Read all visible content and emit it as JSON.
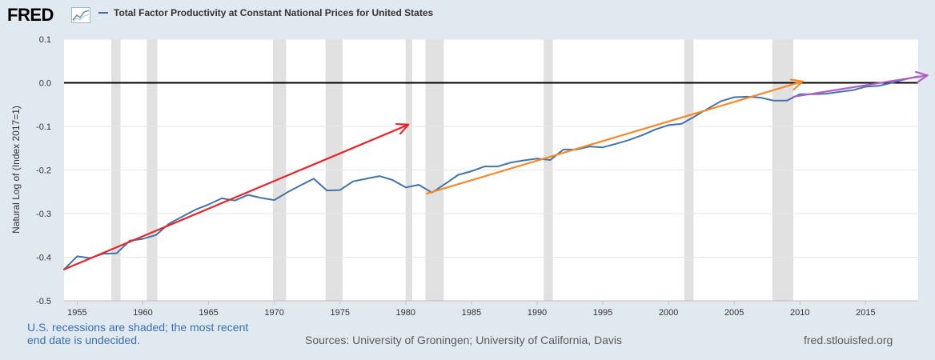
{
  "header": {
    "logo_text": "FRED",
    "logo_icon": "chart-line-icon",
    "legend_label": "Total Factor Productivity at Constant National Prices for United States"
  },
  "footer": {
    "recession_note": "U.S. recessions are shaded; the most recent end date is undecided.",
    "sources": "Sources: University of Groningen; University of California, Davis",
    "site": "fred.stlouisfed.org"
  },
  "colors": {
    "series": "#4572a7",
    "recession": "#e1e1e1",
    "zero_line": "#000000",
    "arrow_red": "#e8232a",
    "arrow_orange": "#f5892a",
    "arrow_purple": "#b05ec8",
    "background": "#e1e9f0"
  },
  "chart_data": {
    "type": "line",
    "title": "",
    "xlabel": "",
    "ylabel": "Natural Log of (Index 2017=1)",
    "xlim": [
      1954.0,
      2019.0
    ],
    "ylim": [
      -0.5,
      0.1
    ],
    "xticks": [
      1955,
      1960,
      1965,
      1970,
      1975,
      1980,
      1985,
      1990,
      1995,
      2000,
      2005,
      2010,
      2015
    ],
    "yticks": [
      0.1,
      0.0,
      -0.1,
      -0.2,
      -0.3,
      -0.4,
      -0.5
    ],
    "ytick_labels": [
      "0.1",
      "0.0",
      "-0.1",
      "-0.2",
      "-0.3",
      "-0.4",
      "-0.5"
    ],
    "grid": "horizontal",
    "reference_line": 0.0,
    "recessions": [
      [
        1957.6,
        1958.3
      ],
      [
        1960.3,
        1961.1
      ],
      [
        1969.9,
        1970.9
      ],
      [
        1973.9,
        1975.2
      ],
      [
        1980.0,
        1980.5
      ],
      [
        1981.5,
        1982.9
      ],
      [
        1990.5,
        1991.2
      ],
      [
        2001.2,
        2001.9
      ],
      [
        2007.9,
        2009.5
      ]
    ],
    "series": [
      {
        "name": "Total Factor Productivity at Constant National Prices for United States",
        "x": [
          1954,
          1955,
          1956,
          1957,
          1958,
          1959,
          1960,
          1961,
          1962,
          1963,
          1964,
          1965,
          1966,
          1967,
          1968,
          1969,
          1970,
          1971,
          1972,
          1973,
          1974,
          1975,
          1976,
          1977,
          1978,
          1979,
          1980,
          1981,
          1982,
          1983,
          1984,
          1985,
          1986,
          1987,
          1988,
          1989,
          1990,
          1991,
          1992,
          1993,
          1994,
          1995,
          1996,
          1997,
          1998,
          1999,
          2000,
          2001,
          2002,
          2003,
          2004,
          2005,
          2006,
          2007,
          2008,
          2009,
          2010,
          2011,
          2012,
          2013,
          2014,
          2015,
          2016,
          2017,
          2018,
          2019
        ],
        "values": [
          -0.428,
          -0.398,
          -0.402,
          -0.392,
          -0.391,
          -0.362,
          -0.358,
          -0.349,
          -0.323,
          -0.307,
          -0.291,
          -0.279,
          -0.265,
          -0.27,
          -0.257,
          -0.264,
          -0.269,
          -0.251,
          -0.235,
          -0.22,
          -0.247,
          -0.246,
          -0.226,
          -0.22,
          -0.214,
          -0.223,
          -0.24,
          -0.234,
          -0.252,
          -0.232,
          -0.211,
          -0.203,
          -0.192,
          -0.192,
          -0.183,
          -0.178,
          -0.174,
          -0.177,
          -0.153,
          -0.153,
          -0.146,
          -0.148,
          -0.14,
          -0.131,
          -0.12,
          -0.107,
          -0.097,
          -0.094,
          -0.077,
          -0.059,
          -0.042,
          -0.033,
          -0.032,
          -0.034,
          -0.041,
          -0.041,
          -0.026,
          -0.026,
          -0.025,
          -0.021,
          -0.017,
          -0.009,
          -0.007,
          0.0,
          0.008,
          0.015
        ]
      }
    ],
    "annotations": [
      {
        "type": "arrow",
        "color": "#e8232a",
        "from": [
          1954.0,
          -0.428
        ],
        "to": [
          1980.2,
          -0.096
        ]
      },
      {
        "type": "arrow",
        "color": "#f5892a",
        "from": [
          1981.6,
          -0.254
        ],
        "to": [
          2010.2,
          0.003
        ]
      },
      {
        "type": "arrow",
        "color": "#b05ec8",
        "from": [
          2009.5,
          -0.032
        ],
        "to": [
          2019.7,
          0.017
        ]
      }
    ]
  }
}
